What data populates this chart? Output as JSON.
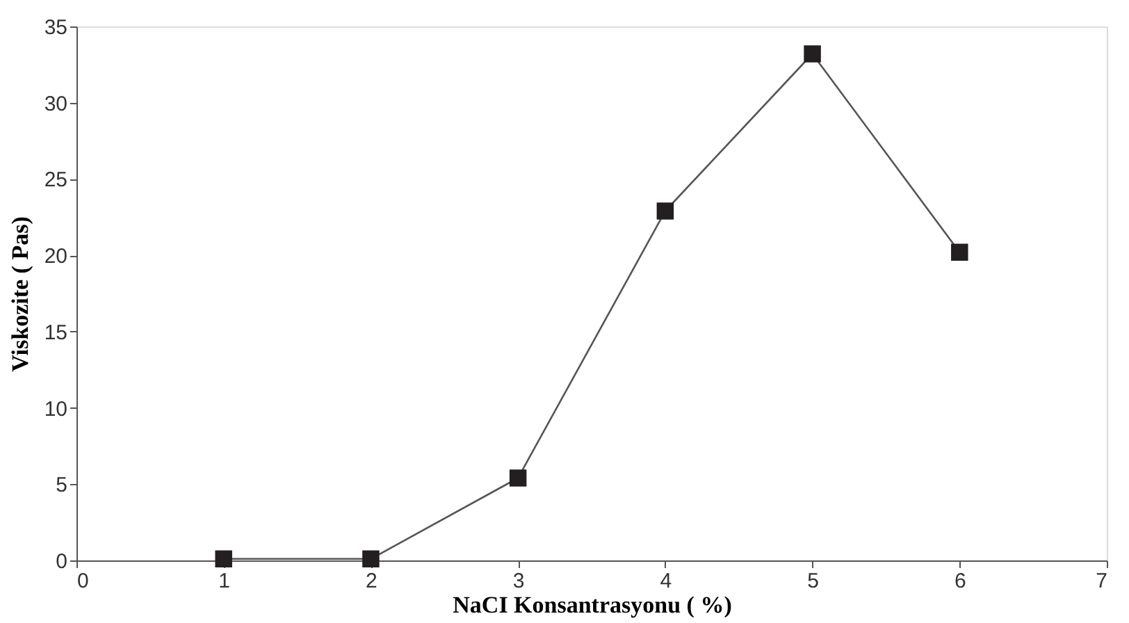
{
  "chart_data": {
    "type": "line",
    "xlabel": "NaCI Konsantrasyonu ( %)",
    "ylabel": "Viskozite ( Pas)",
    "x": [
      1,
      2,
      3,
      4,
      5,
      6
    ],
    "series": [
      {
        "color": "#231f20",
        "values": [
          0.1,
          0.1,
          5.4,
          22.9,
          33.2,
          20.2
        ]
      }
    ],
    "xlim": [
      0,
      7
    ],
    "xticks": [
      0,
      1,
      2,
      3,
      4,
      5,
      6,
      7
    ],
    "ylim": [
      0,
      35
    ],
    "yticks": [
      0,
      5,
      10,
      15,
      20,
      25,
      30,
      35
    ],
    "marker": "square",
    "line_style": "solid",
    "grid": false,
    "legend": false
  }
}
